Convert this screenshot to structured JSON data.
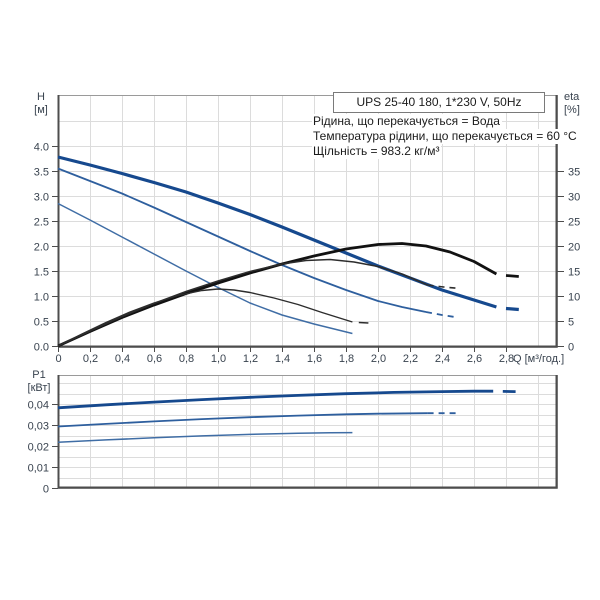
{
  "title_box": {
    "text": "UPS 25-40 180, 1*230 V, 50Hz"
  },
  "info_lines": [
    "Рідина, що перекачується = Вода",
    "Температура рідини, що перекачується = 60 °C",
    "Щільність = 983.2 кг/м³"
  ],
  "axis_headers": {
    "h_name": "H",
    "h_unit": "[м]",
    "eta_name": "eta",
    "eta_unit": "[%]",
    "p_name": "P1",
    "p_unit": "[кВт]",
    "q_title": "Q [м³/год.]"
  },
  "colors": {
    "curve_blue_dark": "#16498e",
    "curve_blue_mid": "#2e5f9e",
    "curve_blue_light": "#3f6da5",
    "curve_black_dark": "#121212",
    "curve_black_mid": "#2d2d2d",
    "grid": "#dcdcdc",
    "frame": "#9a9a9a",
    "axis": "#4d4d4d",
    "tick_text": "#39434f"
  },
  "chart_data": [
    {
      "id": "head-efficiency-chart",
      "type": "line",
      "title": "UPS 25-40 180, 1*230 V, 50Hz",
      "xlabel": "Q [м³/год.]",
      "ylabel_left": "H [м]",
      "ylabel_right": "eta [%]",
      "x_range": [
        0,
        3.12
      ],
      "y_left_range": [
        0,
        5.04
      ],
      "y_right_range": [
        0,
        50.4
      ],
      "grid": {
        "x_step": 0.2,
        "x_max": 3.0,
        "y_step": 0.5,
        "y_max": 4.5
      },
      "x_ticks": [
        {
          "v": 0,
          "t": "0"
        },
        {
          "v": 0.2,
          "t": "0,2"
        },
        {
          "v": 0.4,
          "t": "0,4"
        },
        {
          "v": 0.6,
          "t": "0,6"
        },
        {
          "v": 0.8,
          "t": "0,8"
        },
        {
          "v": 1.0,
          "t": "1,0"
        },
        {
          "v": 1.2,
          "t": "1,2"
        },
        {
          "v": 1.4,
          "t": "1,4"
        },
        {
          "v": 1.6,
          "t": "1,6"
        },
        {
          "v": 1.8,
          "t": "1,8"
        },
        {
          "v": 2.0,
          "t": "2,0"
        },
        {
          "v": 2.2,
          "t": "2,2"
        },
        {
          "v": 2.4,
          "t": "2,4"
        },
        {
          "v": 2.6,
          "t": "2,6"
        },
        {
          "v": 2.8,
          "t": "2,8"
        }
      ],
      "y_left_ticks": [
        {
          "v": 0.0,
          "t": "0.0"
        },
        {
          "v": 0.5,
          "t": "0.5"
        },
        {
          "v": 1.0,
          "t": "1.0"
        },
        {
          "v": 1.5,
          "t": "1.5"
        },
        {
          "v": 2.0,
          "t": "2.0"
        },
        {
          "v": 2.5,
          "t": "2.5"
        },
        {
          "v": 3.0,
          "t": "3.0"
        },
        {
          "v": 3.5,
          "t": "3.5"
        },
        {
          "v": 4.0,
          "t": "4.0"
        }
      ],
      "y_right_ticks": [
        {
          "v": 0,
          "t": "0"
        },
        {
          "v": 5,
          "t": "5"
        },
        {
          "v": 10,
          "t": "10"
        },
        {
          "v": 15,
          "t": "15"
        },
        {
          "v": 20,
          "t": "20"
        },
        {
          "v": 25,
          "t": "25"
        },
        {
          "v": 30,
          "t": "30"
        },
        {
          "v": 35,
          "t": "35"
        }
      ],
      "series": [
        {
          "name": "head-speed-3",
          "axis": "left",
          "color": "curve_blue_dark",
          "width": 3.2,
          "style": "solid",
          "points": [
            [
              0,
              3.78
            ],
            [
              0.2,
              3.62
            ],
            [
              0.4,
              3.45
            ],
            [
              0.6,
              3.27
            ],
            [
              0.8,
              3.08
            ],
            [
              1.0,
              2.86
            ],
            [
              1.2,
              2.63
            ],
            [
              1.4,
              2.38
            ],
            [
              1.6,
              2.12
            ],
            [
              1.8,
              1.86
            ],
            [
              2.0,
              1.6
            ],
            [
              2.2,
              1.36
            ],
            [
              2.4,
              1.12
            ],
            [
              2.6,
              0.92
            ],
            [
              2.74,
              0.78
            ]
          ]
        },
        {
          "name": "head-speed-3-end-marker",
          "axis": "left",
          "color": "curve_blue_dark",
          "width": 3.2,
          "style": "solid",
          "points": [
            [
              2.8,
              0.75
            ],
            [
              2.88,
              0.73
            ]
          ]
        },
        {
          "name": "head-speed-2",
          "axis": "left",
          "color": "curve_blue_mid",
          "width": 1.8,
          "style": "solid",
          "points": [
            [
              0,
              3.55
            ],
            [
              0.2,
              3.3
            ],
            [
              0.4,
              3.05
            ],
            [
              0.6,
              2.77
            ],
            [
              0.8,
              2.48
            ],
            [
              1.0,
              2.19
            ],
            [
              1.2,
              1.9
            ],
            [
              1.4,
              1.62
            ],
            [
              1.6,
              1.36
            ],
            [
              1.8,
              1.12
            ],
            [
              2.0,
              0.9
            ],
            [
              2.15,
              0.78
            ],
            [
              2.3,
              0.68
            ]
          ]
        },
        {
          "name": "head-speed-2-overload-dashed",
          "axis": "left",
          "color": "curve_blue_mid",
          "width": 1.8,
          "style": "dashed",
          "points": [
            [
              2.3,
              0.68
            ],
            [
              2.4,
              0.62
            ],
            [
              2.5,
              0.57
            ]
          ]
        },
        {
          "name": "head-speed-1",
          "axis": "left",
          "color": "curve_blue_light",
          "width": 1.5,
          "style": "solid",
          "points": [
            [
              0,
              2.85
            ],
            [
              0.2,
              2.52
            ],
            [
              0.4,
              2.18
            ],
            [
              0.6,
              1.84
            ],
            [
              0.8,
              1.5
            ],
            [
              1.0,
              1.17
            ],
            [
              1.2,
              0.86
            ],
            [
              1.4,
              0.62
            ],
            [
              1.6,
              0.44
            ],
            [
              1.84,
              0.25
            ]
          ]
        },
        {
          "name": "eta-speed-3",
          "axis": "right",
          "color": "curve_black_dark",
          "width": 2.8,
          "style": "solid",
          "points": [
            [
              0,
              0
            ],
            [
              0.2,
              2.9
            ],
            [
              0.4,
              5.7
            ],
            [
              0.6,
              8.2
            ],
            [
              0.8,
              10.5
            ],
            [
              1.0,
              12.6
            ],
            [
              1.2,
              14.6
            ],
            [
              1.4,
              16.4
            ],
            [
              1.6,
              18.0
            ],
            [
              1.8,
              19.4
            ],
            [
              2.0,
              20.3
            ],
            [
              2.15,
              20.5
            ],
            [
              2.3,
              20.0
            ],
            [
              2.45,
              18.8
            ],
            [
              2.6,
              16.9
            ],
            [
              2.74,
              14.4
            ]
          ]
        },
        {
          "name": "eta-speed-3-end-marker",
          "axis": "right",
          "color": "curve_black_dark",
          "width": 2.8,
          "style": "solid",
          "points": [
            [
              2.8,
              14.1
            ],
            [
              2.88,
              13.9
            ]
          ]
        },
        {
          "name": "eta-speed-2",
          "axis": "right",
          "color": "curve_black_mid",
          "width": 1.6,
          "style": "solid",
          "points": [
            [
              0,
              0
            ],
            [
              0.2,
              3.0
            ],
            [
              0.4,
              5.9
            ],
            [
              0.6,
              8.5
            ],
            [
              0.8,
              10.9
            ],
            [
              1.0,
              13.0
            ],
            [
              1.2,
              14.9
            ],
            [
              1.4,
              16.4
            ],
            [
              1.55,
              17.1
            ],
            [
              1.7,
              17.3
            ],
            [
              1.85,
              16.8
            ],
            [
              2.0,
              15.9
            ],
            [
              2.15,
              14.4
            ],
            [
              2.31,
              12.2
            ]
          ]
        },
        {
          "name": "eta-speed-2-overload-dashed",
          "axis": "right",
          "color": "curve_black_mid",
          "width": 1.6,
          "style": "dashed",
          "points": [
            [
              2.31,
              12.2
            ],
            [
              2.41,
              11.8
            ],
            [
              2.51,
              11.5
            ]
          ]
        },
        {
          "name": "eta-speed-1",
          "axis": "right",
          "color": "curve_black_mid",
          "width": 1.4,
          "style": "solid",
          "points": [
            [
              0,
              0
            ],
            [
              0.15,
              2.4
            ],
            [
              0.3,
              4.7
            ],
            [
              0.45,
              6.8
            ],
            [
              0.6,
              8.6
            ],
            [
              0.75,
              10.1
            ],
            [
              0.9,
              11.1
            ],
            [
              1.0,
              11.4
            ],
            [
              1.1,
              11.2
            ],
            [
              1.2,
              10.7
            ],
            [
              1.35,
              9.6
            ],
            [
              1.5,
              8.3
            ],
            [
              1.65,
              6.7
            ],
            [
              1.84,
              4.8
            ]
          ]
        },
        {
          "name": "eta-speed-1-end-marker",
          "axis": "right",
          "color": "curve_black_mid",
          "width": 1.4,
          "style": "solid",
          "points": [
            [
              1.88,
              4.7
            ],
            [
              1.94,
              4.6
            ]
          ]
        }
      ]
    },
    {
      "id": "power-chart",
      "type": "line",
      "xlabel": "Q [м³/год.]",
      "ylabel_left": "P1 [кВт]",
      "x_range": [
        0,
        3.12
      ],
      "y_left_range": [
        0,
        0.0538
      ],
      "grid": {
        "x_step": 0.2,
        "x_max": 3.0,
        "y_step": 0.005,
        "y_max": 0.05
      },
      "x_ticks": [],
      "y_left_ticks": [
        {
          "v": 0,
          "t": "0"
        },
        {
          "v": 0.01,
          "t": "0,01"
        },
        {
          "v": 0.02,
          "t": "0,02"
        },
        {
          "v": 0.03,
          "t": "0,03"
        },
        {
          "v": 0.04,
          "t": "0,04"
        }
      ],
      "series": [
        {
          "name": "power-speed-3",
          "axis": "left",
          "color": "curve_blue_dark",
          "width": 2.8,
          "style": "solid",
          "points": [
            [
              0,
              0.0382
            ],
            [
              0.3,
              0.0396
            ],
            [
              0.6,
              0.0409
            ],
            [
              0.9,
              0.0421
            ],
            [
              1.2,
              0.0432
            ],
            [
              1.5,
              0.0441
            ],
            [
              1.8,
              0.0449
            ],
            [
              2.1,
              0.0455
            ],
            [
              2.4,
              0.0459
            ],
            [
              2.6,
              0.0461
            ],
            [
              2.72,
              0.0461
            ]
          ]
        },
        {
          "name": "power-speed-3-end-marker",
          "axis": "left",
          "color": "curve_blue_dark",
          "width": 2.8,
          "style": "solid",
          "points": [
            [
              2.78,
              0.046
            ],
            [
              2.86,
              0.0459
            ]
          ]
        },
        {
          "name": "power-speed-2",
          "axis": "left",
          "color": "curve_blue_mid",
          "width": 1.8,
          "style": "solid",
          "points": [
            [
              0,
              0.0293
            ],
            [
              0.3,
              0.0305
            ],
            [
              0.6,
              0.0317
            ],
            [
              0.9,
              0.0328
            ],
            [
              1.2,
              0.0337
            ],
            [
              1.5,
              0.0345
            ],
            [
              1.8,
              0.0351
            ],
            [
              2.0,
              0.0354
            ],
            [
              2.31,
              0.0356
            ]
          ]
        },
        {
          "name": "power-speed-2-overload-dashed",
          "axis": "left",
          "color": "curve_blue_mid",
          "width": 1.8,
          "style": "dashed",
          "points": [
            [
              2.31,
              0.0356
            ],
            [
              2.4,
              0.0356
            ],
            [
              2.5,
              0.0356
            ]
          ]
        },
        {
          "name": "power-speed-1",
          "axis": "left",
          "color": "curve_blue_light",
          "width": 1.5,
          "style": "solid",
          "points": [
            [
              0,
              0.0218
            ],
            [
              0.3,
              0.0229
            ],
            [
              0.6,
              0.0239
            ],
            [
              0.9,
              0.0248
            ],
            [
              1.2,
              0.0255
            ],
            [
              1.5,
              0.0261
            ],
            [
              1.7,
              0.0263
            ],
            [
              1.84,
              0.0264
            ]
          ]
        }
      ]
    }
  ]
}
